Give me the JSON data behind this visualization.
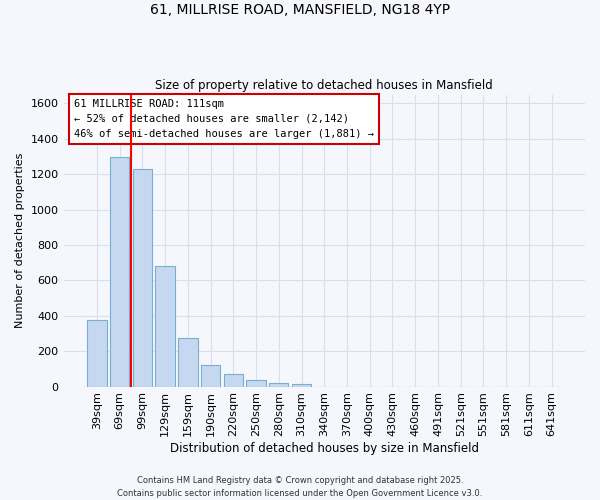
{
  "title_line1": "61, MILLRISE ROAD, MANSFIELD, NG18 4YP",
  "title_line2": "Size of property relative to detached houses in Mansfield",
  "xlabel": "Distribution of detached houses by size in Mansfield",
  "ylabel": "Number of detached properties",
  "categories": [
    "39sqm",
    "69sqm",
    "99sqm",
    "129sqm",
    "159sqm",
    "190sqm",
    "220sqm",
    "250sqm",
    "280sqm",
    "310sqm",
    "340sqm",
    "370sqm",
    "400sqm",
    "430sqm",
    "460sqm",
    "491sqm",
    "521sqm",
    "551sqm",
    "581sqm",
    "611sqm",
    "641sqm"
  ],
  "values": [
    375,
    1295,
    1230,
    680,
    275,
    120,
    70,
    35,
    20,
    15,
    0,
    0,
    0,
    0,
    0,
    0,
    0,
    0,
    0,
    0,
    0
  ],
  "bar_color": "#c5d8f0",
  "bar_edge_color": "#7aadd4",
  "red_line_x": 1.5,
  "annotation_text": "61 MILLRISE ROAD: 111sqm\n← 52% of detached houses are smaller (2,142)\n46% of semi-detached houses are larger (1,881) →",
  "annotation_box_color": "#ffffff",
  "annotation_box_edge": "#cc0000",
  "ylim": [
    0,
    1650
  ],
  "yticks": [
    0,
    200,
    400,
    600,
    800,
    1000,
    1200,
    1400,
    1600
  ],
  "footer": "Contains HM Land Registry data © Crown copyright and database right 2025.\nContains public sector information licensed under the Open Government Licence v3.0.",
  "bg_color": "#f5f7fc",
  "plot_bg_color": "#f5f7fc",
  "grid_color": "#d8e0f0"
}
